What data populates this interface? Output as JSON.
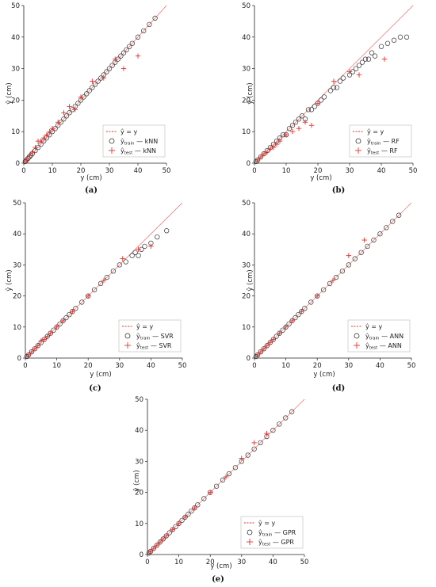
{
  "panels": [
    {
      "caption": "(a)",
      "xlabel": "y (cm)",
      "ylabel": "ŷ (cm)",
      "legend": {
        "identity": "ŷ = y",
        "train": {
          "main": "ŷ",
          "sub": "train",
          "rest": " — kNN"
        },
        "test": {
          "main": "ŷ",
          "sub": "test",
          "rest": " — kNN"
        }
      },
      "xticks": [
        "0",
        "10",
        "20",
        "30",
        "40",
        "50"
      ],
      "yticks": [
        "0",
        "10",
        "20",
        "30",
        "40",
        "50"
      ]
    },
    {
      "caption": "(b)",
      "xlabel": "y (cm)",
      "ylabel": "ŷ (cm)",
      "legend": {
        "identity": "ŷ = y",
        "train": {
          "main": "ŷ",
          "sub": "train",
          "rest": " — RF"
        },
        "test": {
          "main": "ŷ",
          "sub": "test",
          "rest": " — RF"
        }
      },
      "xticks": [
        "0",
        "10",
        "20",
        "30",
        "40",
        "50"
      ],
      "yticks": [
        "0",
        "10",
        "20",
        "30",
        "40",
        "50"
      ]
    },
    {
      "caption": "(c)",
      "xlabel": "y (cm)",
      "ylabel": "ŷ (cm)",
      "legend": {
        "identity": "ŷ = y",
        "train": {
          "main": "ŷ",
          "sub": "train",
          "rest": " — SVR"
        },
        "test": {
          "main": "ŷ",
          "sub": "test",
          "rest": " — SVR"
        }
      },
      "xticks": [
        "0",
        "10",
        "20",
        "30",
        "40",
        "50"
      ],
      "yticks": [
        "0",
        "10",
        "20",
        "30",
        "40",
        "50"
      ]
    },
    {
      "caption": "(d)",
      "xlabel": "y (cm)",
      "ylabel": "ŷ (cm)",
      "legend": {
        "identity": "ŷ = y",
        "train": {
          "main": "ŷ",
          "sub": "train",
          "rest": " — ANN"
        },
        "test": {
          "main": "ŷ",
          "sub": "test",
          "rest": " — ANN"
        }
      },
      "xticks": [
        "0",
        "10",
        "20",
        "30",
        "40",
        "50"
      ],
      "yticks": [
        "0",
        "10",
        "20",
        "30",
        "40",
        "50"
      ]
    },
    {
      "caption": "(e)",
      "xlabel": "y (cm)",
      "ylabel": "ŷ (cm)",
      "legend": {
        "identity": "ŷ = y",
        "train": {
          "main": "ŷ",
          "sub": "train",
          "rest": " — GPR"
        },
        "test": {
          "main": "ŷ",
          "sub": "test",
          "rest": " — GPR"
        }
      },
      "xticks": [
        "0",
        "10",
        "20",
        "30",
        "40",
        "50"
      ],
      "yticks": [
        "0",
        "10",
        "20",
        "30",
        "40",
        "50"
      ]
    }
  ],
  "colors": {
    "train": "#333333",
    "test": "#e8302a",
    "identity": "#e8302a",
    "axis": "#222222"
  },
  "chart_data": [
    {
      "type": "scatter",
      "xlabel": "y (cm)",
      "ylabel": "ŷ (cm)",
      "xlim": [
        0,
        50
      ],
      "ylim": [
        0,
        50
      ],
      "grid": false,
      "legend_position": "bottom-right",
      "series": [
        {
          "name": "ŷtrain — kNN",
          "marker": "circle",
          "x": [
            0.5,
            1,
            1.5,
            2,
            2.5,
            3,
            4,
            5,
            6,
            7,
            8,
            9,
            10,
            11,
            12,
            13,
            14,
            15,
            16,
            17,
            18,
            19,
            20,
            21,
            22,
            23,
            24,
            25,
            26,
            27,
            28,
            29,
            30,
            31,
            32,
            33,
            34,
            35,
            36,
            37,
            38,
            40,
            42,
            44,
            46
          ],
          "y": [
            0.5,
            1,
            1.5,
            2,
            2.5,
            3,
            4,
            5,
            6,
            7,
            8,
            9,
            10,
            11,
            12,
            13,
            14,
            15,
            16,
            17,
            18,
            19,
            20,
            21,
            22,
            23,
            24,
            25,
            26,
            27,
            28,
            29,
            30,
            31,
            32,
            33,
            34,
            35,
            36,
            37,
            38,
            40,
            42,
            44,
            46
          ]
        },
        {
          "name": "ŷtest — kNN",
          "marker": "plus",
          "x": [
            1,
            2,
            3,
            4,
            5,
            6,
            7,
            8,
            9,
            10,
            12,
            14,
            16,
            18,
            20,
            24,
            28,
            32,
            35,
            40
          ],
          "y": [
            1,
            2.5,
            3.5,
            5,
            7,
            7,
            8,
            9,
            10,
            11,
            13,
            16,
            18,
            17,
            21,
            26,
            27,
            33,
            30,
            34
          ]
        }
      ]
    },
    {
      "type": "scatter",
      "xlabel": "y (cm)",
      "ylabel": "ŷ (cm)",
      "xlim": [
        0,
        50
      ],
      "ylim": [
        0,
        50
      ],
      "grid": false,
      "legend_position": "bottom-right",
      "series": [
        {
          "name": "ŷtrain — RF",
          "marker": "circle",
          "x": [
            0.5,
            1,
            2,
            3,
            4,
            5,
            6,
            7,
            8,
            9,
            10,
            11,
            12,
            13,
            14,
            15,
            16,
            17,
            18,
            19,
            20,
            21,
            22,
            24,
            25,
            26,
            27,
            28,
            30,
            31,
            32,
            33,
            34,
            35,
            36,
            37,
            38,
            40,
            42,
            44,
            46,
            48
          ],
          "y": [
            0.5,
            1,
            2,
            3,
            4,
            5,
            6,
            7,
            8,
            9,
            9,
            11,
            12,
            13,
            14,
            15,
            14,
            17,
            17,
            18,
            19,
            20,
            21,
            23,
            24,
            24,
            26,
            27,
            28,
            29,
            30,
            31,
            32,
            33,
            33,
            35,
            34,
            37,
            38,
            39,
            40,
            40
          ]
        },
        {
          "name": "ŷtest — RF",
          "marker": "plus",
          "x": [
            1,
            2,
            3,
            4,
            5,
            6,
            7,
            8,
            10,
            12,
            14,
            16,
            18,
            20,
            25,
            30,
            33,
            41
          ],
          "y": [
            1,
            2,
            3,
            3.5,
            4.5,
            5,
            6,
            7,
            9,
            10,
            11,
            13,
            12,
            19,
            26,
            29,
            28,
            33
          ]
        }
      ]
    },
    {
      "type": "scatter",
      "xlabel": "y (cm)",
      "ylabel": "ŷ (cm)",
      "xlim": [
        0,
        50
      ],
      "ylim": [
        0,
        50
      ],
      "grid": false,
      "legend_position": "bottom-right",
      "series": [
        {
          "name": "ŷtrain — SVR",
          "marker": "circle",
          "x": [
            0.5,
            1,
            2,
            3,
            4,
            5,
            6,
            7,
            8,
            9,
            10,
            11,
            12,
            13,
            14,
            15,
            16,
            18,
            20,
            22,
            24,
            26,
            28,
            30,
            32,
            34,
            35,
            36,
            37,
            38,
            40,
            42,
            45
          ],
          "y": [
            0.5,
            1,
            2,
            3,
            4,
            5,
            6,
            7,
            8,
            9,
            10,
            11,
            12,
            13,
            14,
            15,
            16,
            18,
            20,
            22,
            24,
            26,
            28,
            30,
            31,
            33,
            34,
            33,
            35,
            36,
            37,
            39,
            41
          ]
        },
        {
          "name": "ŷtest — SVR",
          "marker": "plus",
          "x": [
            1,
            2,
            3,
            4,
            5,
            6,
            7,
            8,
            10,
            12,
            15,
            20,
            25,
            31,
            36,
            40
          ],
          "y": [
            1,
            2,
            3,
            4,
            5.5,
            6,
            7,
            8,
            10,
            12,
            15,
            20,
            25,
            32,
            35,
            36
          ]
        }
      ]
    },
    {
      "type": "scatter",
      "xlabel": "y (cm)",
      "ylabel": "ŷ (cm)",
      "xlim": [
        0,
        50
      ],
      "ylim": [
        0,
        50
      ],
      "grid": false,
      "legend_position": "bottom-right",
      "series": [
        {
          "name": "ŷtrain — ANN",
          "marker": "circle",
          "x": [
            0.5,
            1,
            2,
            3,
            4,
            5,
            6,
            7,
            8,
            9,
            10,
            11,
            12,
            13,
            14,
            15,
            16,
            18,
            20,
            22,
            24,
            26,
            28,
            30,
            32,
            34,
            36,
            38,
            40,
            42,
            44,
            46
          ],
          "y": [
            0.5,
            1,
            2,
            3,
            4,
            5,
            6,
            7,
            8,
            9,
            10,
            11,
            12,
            13,
            14,
            15,
            16,
            18,
            20,
            22,
            24,
            26,
            28,
            30,
            32,
            34,
            36,
            38,
            40,
            42,
            44,
            46
          ]
        },
        {
          "name": "ŷtest — ANN",
          "marker": "plus",
          "x": [
            1,
            2,
            3,
            4,
            5,
            6,
            8,
            10,
            12,
            15,
            20,
            25,
            30,
            35
          ],
          "y": [
            1,
            2,
            3,
            4,
            5,
            6,
            8,
            10,
            12,
            15,
            20,
            25,
            33,
            38
          ]
        }
      ]
    },
    {
      "type": "scatter",
      "xlabel": "y (cm)",
      "ylabel": "ŷ (cm)",
      "xlim": [
        0,
        50
      ],
      "ylim": [
        0,
        50
      ],
      "grid": false,
      "legend_position": "bottom-right",
      "series": [
        {
          "name": "ŷtrain — GPR",
          "marker": "circle",
          "x": [
            0.5,
            1,
            2,
            3,
            4,
            5,
            6,
            7,
            8,
            9,
            10,
            11,
            12,
            13,
            14,
            15,
            16,
            18,
            20,
            22,
            24,
            26,
            28,
            30,
            32,
            34,
            36,
            38,
            40,
            42,
            44,
            46
          ],
          "y": [
            0.5,
            1,
            2,
            3,
            4,
            5,
            6,
            7,
            8,
            9,
            10,
            11,
            12,
            13,
            14,
            15,
            16,
            18,
            20,
            22,
            24,
            26,
            28,
            30,
            32,
            34,
            36,
            38,
            40,
            42,
            44,
            46
          ]
        },
        {
          "name": "ŷtest — GPR",
          "marker": "plus",
          "x": [
            1,
            2,
            3,
            4,
            5,
            6,
            8,
            10,
            12,
            15,
            20,
            25,
            30,
            34,
            38
          ],
          "y": [
            1,
            2,
            3,
            4,
            5,
            6,
            8,
            10,
            12,
            15,
            20,
            25,
            31,
            36,
            39
          ]
        }
      ]
    }
  ]
}
